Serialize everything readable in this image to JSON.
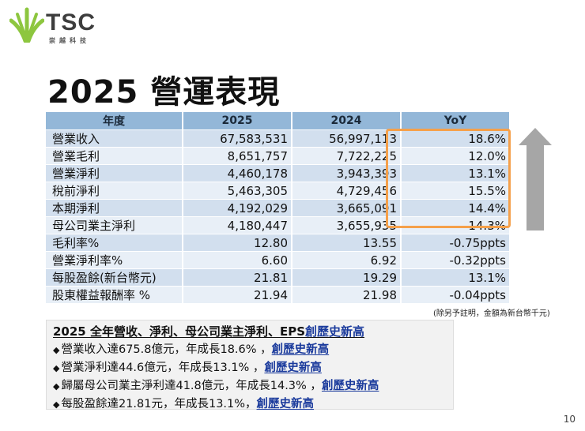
{
  "logo": {
    "name": "TSC",
    "subtitle": "崇越科技"
  },
  "title": "2025 營運表現",
  "table": {
    "headers": [
      "年度",
      "2025",
      "2024",
      "YoY"
    ],
    "rows": [
      {
        "label": "營業收入",
        "v2025": "67,583,531",
        "v2024": "56,997,113",
        "yoy": "18.6%"
      },
      {
        "label": "營業毛利",
        "v2025": "8,651,757",
        "v2024": "7,722,225",
        "yoy": "12.0%"
      },
      {
        "label": "營業淨利",
        "v2025": "4,460,178",
        "v2024": "3,943,393",
        "yoy": "13.1%"
      },
      {
        "label": "稅前淨利",
        "v2025": "5,463,305",
        "v2024": "4,729,456",
        "yoy": "15.5%"
      },
      {
        "label": "本期淨利",
        "v2025": "4,192,029",
        "v2024": "3,665,091",
        "yoy": "14.4%"
      },
      {
        "label": "母公司業主淨利",
        "v2025": "4,180,447",
        "v2024": "3,655,935",
        "yoy": "14.3%"
      },
      {
        "label": "毛利率%",
        "v2025": "12.80",
        "v2024": "13.55",
        "yoy": "-0.75ppts"
      },
      {
        "label": "營業淨利率%",
        "v2025": "6.60",
        "v2024": "6.92",
        "yoy": "-0.32ppts"
      },
      {
        "label": "每股盈餘(新台幣元)",
        "v2025": "21.81",
        "v2024": "19.29",
        "yoy": "13.1%"
      },
      {
        "label": "股東權益報酬率 %",
        "v2025": "21.94",
        "v2024": "21.98",
        "yoy": "-0.04ppts"
      }
    ]
  },
  "note": "(除另予註明，金額為新台幣千元)",
  "highlights": {
    "title": "2025 全年營收、淨利、母公司業主淨利、EPS",
    "title_record": "創歷史新高",
    "items": [
      {
        "text": "營業收入達675.8億元，年成長18.6% ，",
        "record": "創歷史新高"
      },
      {
        "text": "營業淨利達44.6億元，年成長13.1% ，",
        "record": "創歷史新高"
      },
      {
        "text": "歸屬母公司業主淨利達41.8億元，年成長14.3% ，",
        "record": "創歷史新高"
      },
      {
        "text": "每股盈餘達21.81元，年成長13.1%，",
        "record": "創歷史新高"
      }
    ]
  },
  "colors": {
    "header": "#93b7d8",
    "row_dark": "#d2dfee",
    "row_light": "#e8eff7",
    "highlight_box": "#f5a04a",
    "record_text": "#1a3a9c",
    "arrow": "#a6a6a6",
    "logo_green": "#8dc63f"
  },
  "page_number": "10"
}
